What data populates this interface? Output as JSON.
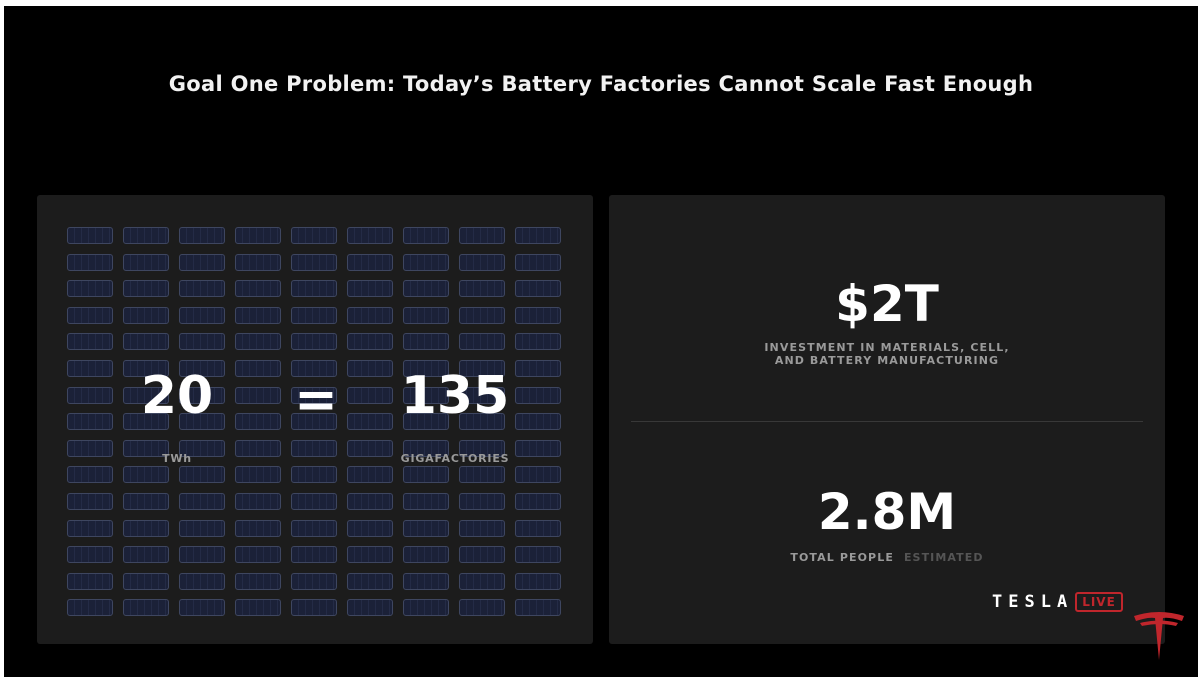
{
  "slide": {
    "title": "Goal One Problem: Today’s Battery Factories Cannot Scale Fast Enough"
  },
  "left_panel": {
    "grid_rows": 15,
    "grid_cols": 9,
    "lhs_value": "20",
    "lhs_unit": "TWh",
    "equals": "=",
    "rhs_value": "135",
    "rhs_unit": "GIGAFACTORIES"
  },
  "right_panel": {
    "investment_value": "$2T",
    "investment_caption_line1": "INVESTMENT IN MATERIALS, CELL,",
    "investment_caption_line2": "AND BATTERY MANUFACTURING",
    "people_value": "2.8M",
    "people_caption": "TOTAL PEOPLE",
    "people_note": "ESTIMATED"
  },
  "branding": {
    "wordmark": "TESLA",
    "live_label": "LIVE",
    "logo_icon": "tesla-t-logo-icon",
    "accent_color": "#c0262c"
  }
}
